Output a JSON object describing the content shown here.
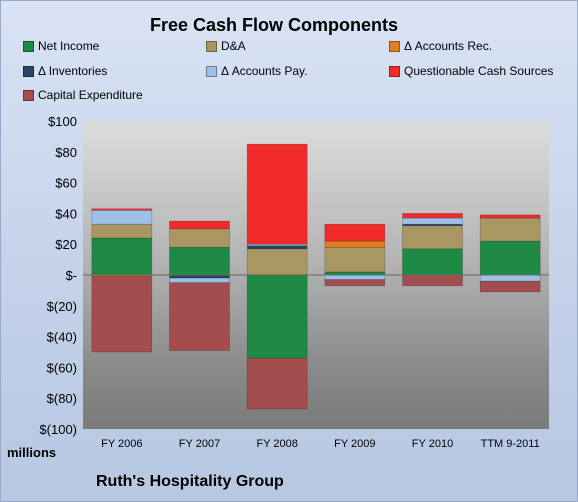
{
  "colors": {
    "Net Income": "#1e8a45",
    "D&A": "#a99762",
    "Δ Accounts Rec.": "#e57c1f",
    "Δ Inventories": "#2a4565",
    "Δ Accounts Pay.": "#9ec0e6",
    "Questionable Cash Sources": "#f12a2a",
    "Capital Expenditure": "#a34e4e"
  },
  "chart_data": {
    "type": "bar",
    "stacked": true,
    "title": "Free Cash Flow Components",
    "ylabel": "millions",
    "ylim": [
      -100,
      100
    ],
    "yticks": [
      100,
      80,
      60,
      40,
      20,
      0,
      -20,
      -40,
      -60,
      -80,
      -100
    ],
    "ytick_labels": [
      "$100",
      "$80",
      "$60",
      "$40",
      "$20",
      "$-",
      "$(20)",
      "$(40)",
      "$(60)",
      "$(80)",
      "$(100)"
    ],
    "grid": false,
    "legend_position": "top",
    "categories": [
      "FY 2006",
      "FY 2007",
      "FY 2008",
      "FY 2009",
      "FY 2010",
      "TTM 9-2011"
    ],
    "series": [
      {
        "name": "Net Income",
        "values": [
          24,
          18,
          -54,
          2,
          17,
          22
        ]
      },
      {
        "name": "D&A",
        "values": [
          9,
          12,
          17,
          16,
          15,
          15
        ]
      },
      {
        "name": "Δ Accounts Rec.",
        "values": [
          -1,
          0,
          0,
          4,
          0,
          0
        ]
      },
      {
        "name": "Δ Inventories",
        "values": [
          0,
          -2,
          2,
          0,
          1,
          0
        ]
      },
      {
        "name": "Δ Accounts Pay.",
        "values": [
          9,
          -3,
          1,
          -3,
          4,
          -4
        ]
      },
      {
        "name": "Questionable Cash Sources",
        "values": [
          1,
          5,
          65,
          11,
          3,
          2
        ]
      },
      {
        "name": "Capital Expenditure",
        "values": [
          -49,
          -44,
          -33,
          -4,
          -7,
          -7
        ]
      }
    ]
  },
  "footer": {
    "company": "Ruth's Hospitality Group"
  }
}
